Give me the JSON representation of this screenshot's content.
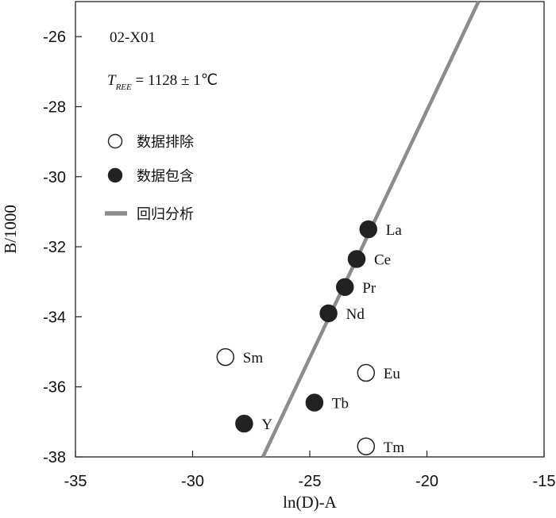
{
  "chart_data": {
    "type": "scatter",
    "title": "",
    "xlabel": "ln(D)-A",
    "ylabel": "B/1000",
    "xlim": [
      -35,
      -15
    ],
    "ylim": [
      -38,
      -25
    ],
    "x_ticks": [
      -35,
      -30,
      -25,
      -20,
      -15
    ],
    "y_ticks": [
      -26,
      -28,
      -30,
      -32,
      -34,
      -36,
      -38
    ],
    "grid": false,
    "sample_id": "02-X01",
    "temperature_annotation": {
      "symbol": "T",
      "subscript": "REE",
      "text": " = 1128 ± 1℃"
    },
    "legend": {
      "position": "left",
      "items": [
        {
          "marker": "open-circle",
          "label": "数据排除"
        },
        {
          "marker": "filled-circle",
          "label": "数据包含"
        },
        {
          "marker": "gray-line",
          "label": "回归分析"
        }
      ]
    },
    "series": [
      {
        "name": "数据包含",
        "marker": "filled-circle",
        "color": "#222222",
        "points": [
          {
            "label": "La",
            "x": -22.5,
            "y": -31.5
          },
          {
            "label": "Ce",
            "x": -23.0,
            "y": -32.35
          },
          {
            "label": "Pr",
            "x": -23.5,
            "y": -33.15
          },
          {
            "label": "Nd",
            "x": -24.2,
            "y": -33.9
          },
          {
            "label": "Tb",
            "x": -24.8,
            "y": -36.45
          },
          {
            "label": "Y",
            "x": -27.8,
            "y": -37.05
          }
        ]
      },
      {
        "name": "数据排除",
        "marker": "open-circle",
        "color": "#222222",
        "points": [
          {
            "label": "Sm",
            "x": -28.6,
            "y": -35.15
          },
          {
            "label": "Eu",
            "x": -22.6,
            "y": -35.6
          },
          {
            "label": "Tm",
            "x": -22.6,
            "y": -37.7
          }
        ]
      }
    ],
    "regression_line": {
      "name": "回归分析",
      "color": "#8c8c8c",
      "x": [
        -27.0,
        -17.8
      ],
      "y": [
        -38.0,
        -25.0
      ]
    }
  }
}
